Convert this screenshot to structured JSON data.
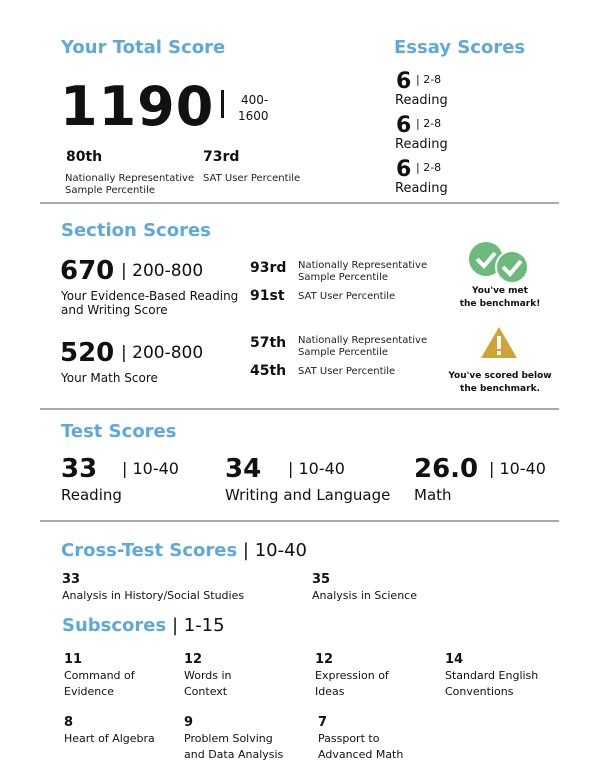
{
  "total": {
    "title": "Your Total Score",
    "score": "1190",
    "range_top": "400-",
    "range_bottom": "1600",
    "p1": "80th",
    "p1_label1": "Nationally Representative",
    "p1_label2": "Sample Percentile",
    "p2": "73rd",
    "p2_label": "SAT User Percentile"
  },
  "essay": {
    "title": "Essay Scores",
    "items": [
      {
        "score": "6",
        "range": "2-8",
        "label": "Reading"
      },
      {
        "score": "6",
        "range": "2-8",
        "label": "Reading"
      },
      {
        "score": "6",
        "range": "2-8",
        "label": "Reading"
      }
    ]
  },
  "section": {
    "title": "Section Scores",
    "items": [
      {
        "score": "670",
        "range": "| 200-800",
        "label1": "Your Evidence-Based Reading",
        "label2": "and Writing Score",
        "p1": "93rd",
        "p1_label1": "Nationally Representative",
        "p1_label2": "Sample Percentile",
        "p2": "91st",
        "p2_label": "SAT User Percentile",
        "bench1": "You've met",
        "bench2": "the benchmark!",
        "icon": "double-check-icon",
        "color": "#6cbb7c"
      },
      {
        "score": "520",
        "range": "| 200-800",
        "label1": "Your Math Score",
        "p1": "57th",
        "p1_label1": "Nationally Representative",
        "p1_label2": "Sample Percentile",
        "p2": "45th",
        "p2_label": "SAT User Percentile",
        "bench1": "You've scored below",
        "bench2": "the benchmark.",
        "icon": "warning-icon",
        "color": "#cfa437"
      }
    ]
  },
  "test": {
    "title": "Test Scores",
    "items": [
      {
        "score": "33",
        "range": "| 10-40",
        "label": "Reading"
      },
      {
        "score": "34",
        "range": "| 10-40",
        "label": "Writing and Language"
      },
      {
        "score": "26.0",
        "range": "| 10-40",
        "label": "Math"
      }
    ]
  },
  "cross": {
    "title": "Cross-Test Scores",
    "range": "| 10-40",
    "items": [
      {
        "score": "33",
        "label": "Analysis in History/Social Studies"
      },
      {
        "score": "35",
        "label": "Analysis in Science"
      }
    ]
  },
  "sub": {
    "title": "Subscores",
    "range": "| 1-15",
    "items": [
      {
        "score": "11",
        "l1": "Command of",
        "l2": "Evidence"
      },
      {
        "score": "12",
        "l1": "Words in",
        "l2": "Context"
      },
      {
        "score": "12",
        "l1": "Expression of",
        "l2": "Ideas"
      },
      {
        "score": "14",
        "l1": "Standard English",
        "l2": "Conventions"
      },
      {
        "score": "8",
        "l1": "Heart of Algebra",
        "l2": ""
      },
      {
        "score": "9",
        "l1": "Problem Solving",
        "l2": "and Data Analysis"
      },
      {
        "score": "7",
        "l1": "Passport to",
        "l2": "Advanced Math"
      }
    ]
  }
}
